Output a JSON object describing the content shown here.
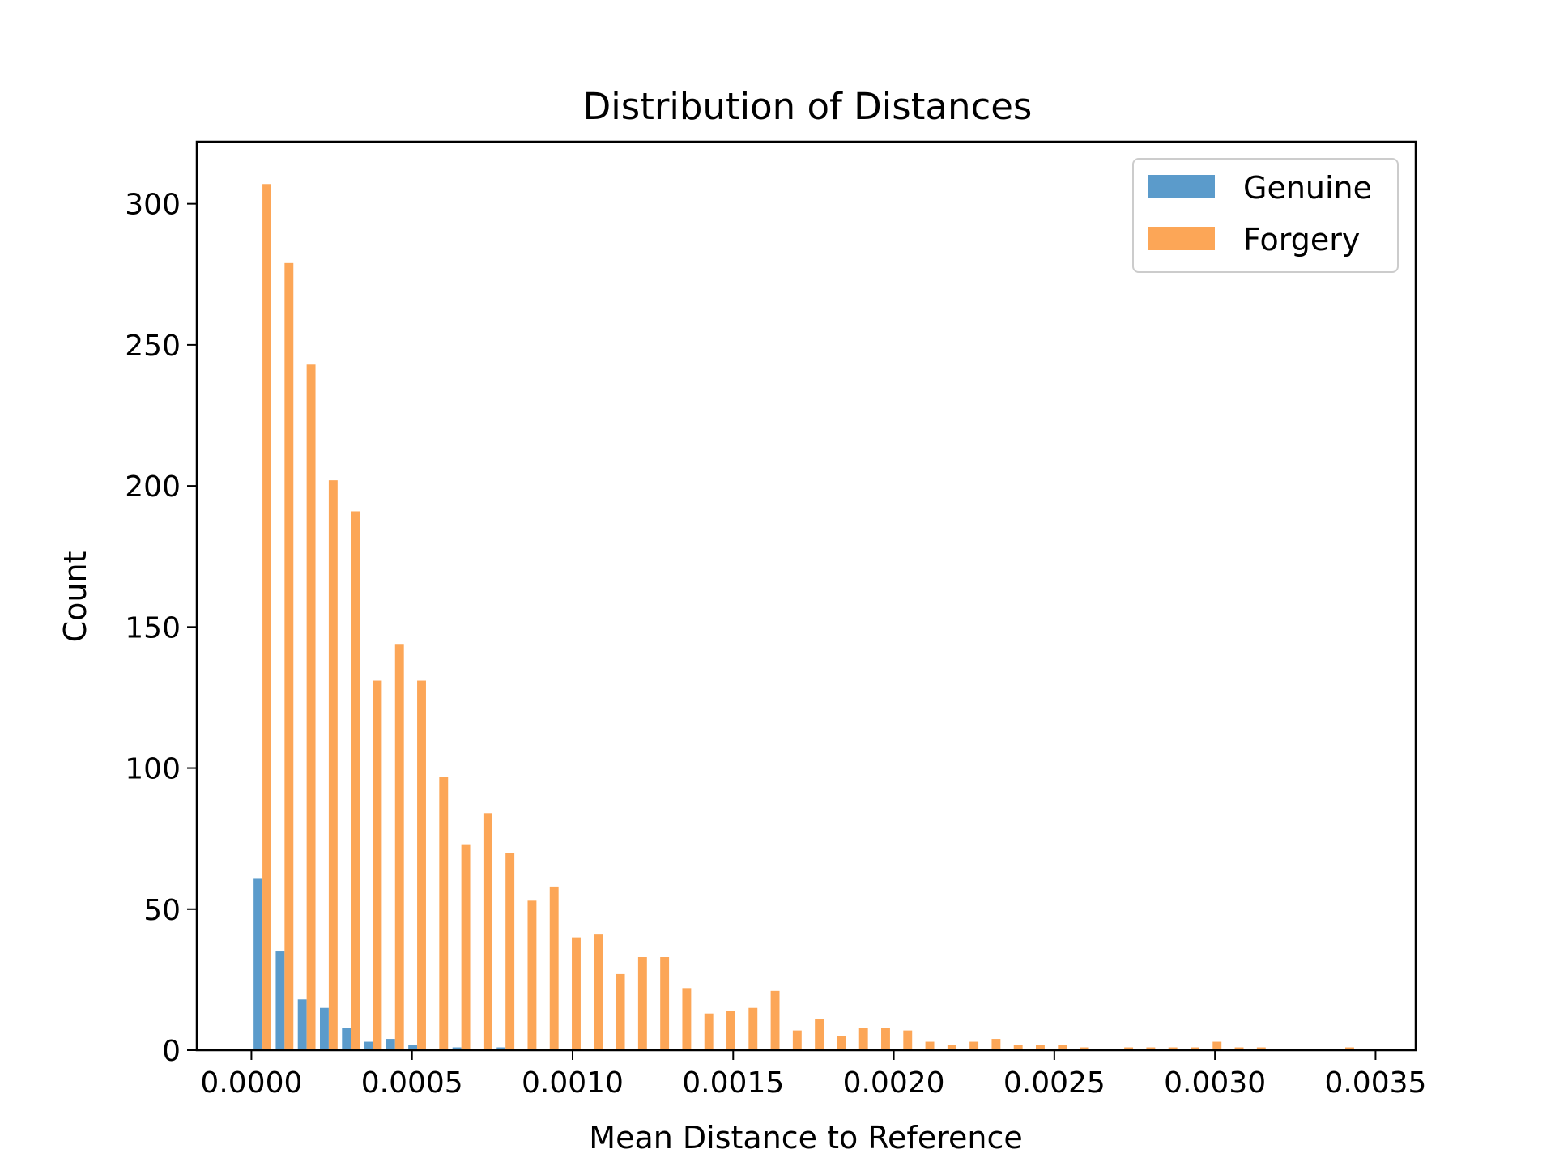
{
  "chart_data": {
    "type": "bar",
    "title": "Distribution of Distances",
    "xlabel": "Mean Distance to Reference",
    "ylabel": "Count",
    "xlim": [
      -0.00017,
      0.003625
    ],
    "ylim": [
      0,
      322
    ],
    "xticks": [
      0.0,
      0.0005,
      0.001,
      0.0015,
      0.002,
      0.0025,
      0.003,
      0.0035
    ],
    "xtick_labels": [
      "0.0000",
      "0.0005",
      "0.0010",
      "0.0015",
      "0.0020",
      "0.0025",
      "0.0030",
      "0.0035"
    ],
    "yticks": [
      0,
      50,
      100,
      150,
      200,
      250,
      300
    ],
    "ytick_labels": [
      "0",
      "50",
      "100",
      "150",
      "200",
      "250",
      "300"
    ],
    "bin_start": 0.0,
    "bin_width": 6.88e-05,
    "legend_position": "upper right",
    "grid": false,
    "series": [
      {
        "name": "Genuine",
        "color": "#5b9bcb",
        "values": [
          61,
          35,
          18,
          15,
          8,
          3,
          4,
          2,
          0,
          1,
          0,
          1,
          0,
          0,
          0,
          0,
          0,
          0,
          0,
          0,
          0,
          0,
          0,
          0,
          0,
          0,
          0,
          0,
          0,
          0,
          0,
          0,
          0,
          0,
          0,
          0,
          0,
          0,
          0,
          0,
          0,
          0,
          0,
          0,
          0,
          0,
          0,
          0,
          0,
          0
        ]
      },
      {
        "name": "Forgery",
        "color": "#fca657",
        "values": [
          307,
          279,
          243,
          202,
          191,
          131,
          144,
          131,
          97,
          73,
          84,
          70,
          53,
          58,
          40,
          41,
          27,
          33,
          33,
          22,
          13,
          14,
          15,
          21,
          7,
          11,
          5,
          8,
          8,
          7,
          3,
          2,
          3,
          4,
          2,
          2,
          2,
          1,
          0,
          1,
          1,
          1,
          1,
          3,
          1,
          1,
          0,
          0,
          0,
          1
        ]
      }
    ]
  }
}
